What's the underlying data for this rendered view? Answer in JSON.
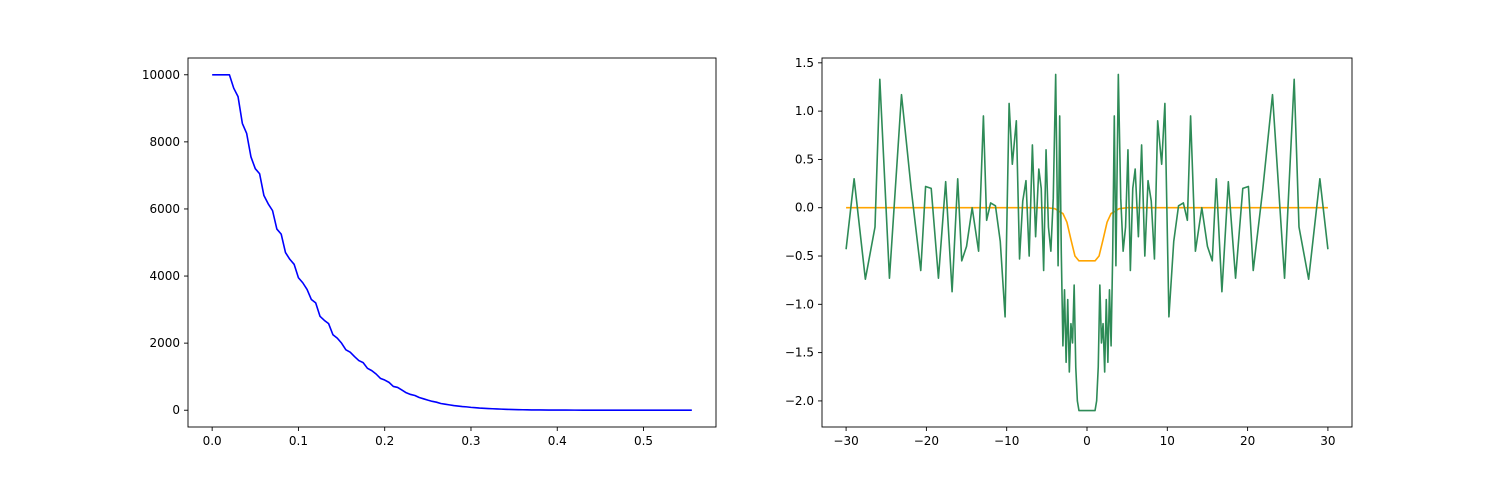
{
  "chart_data": [
    {
      "type": "line",
      "title": "",
      "xlabel": "",
      "ylabel": "",
      "xlim": [
        -0.028,
        0.584
      ],
      "ylim": [
        -500,
        10500
      ],
      "grid": false,
      "xticks": [
        0.0,
        0.1,
        0.2,
        0.3,
        0.4,
        0.5
      ],
      "xtick_labels": [
        "0.0",
        "0.1",
        "0.2",
        "0.3",
        "0.4",
        "0.5"
      ],
      "yticks": [
        0,
        2000,
        4000,
        6000,
        8000,
        10000
      ],
      "ytick_labels": [
        "0",
        "2000",
        "4000",
        "6000",
        "8000",
        "10000"
      ],
      "series": [
        {
          "color": "#0000ff",
          "x": [
            0.0,
            0.02,
            0.025,
            0.03,
            0.035,
            0.04,
            0.045,
            0.05,
            0.055,
            0.06,
            0.065,
            0.07,
            0.075,
            0.08,
            0.085,
            0.09,
            0.095,
            0.1,
            0.105,
            0.11,
            0.115,
            0.12,
            0.125,
            0.13,
            0.135,
            0.14,
            0.145,
            0.15,
            0.155,
            0.16,
            0.165,
            0.17,
            0.175,
            0.18,
            0.185,
            0.19,
            0.195,
            0.2,
            0.205,
            0.21,
            0.215,
            0.22,
            0.225,
            0.23,
            0.235,
            0.24,
            0.245,
            0.25,
            0.255,
            0.26,
            0.265,
            0.27,
            0.275,
            0.28,
            0.285,
            0.29,
            0.295,
            0.3,
            0.305,
            0.31,
            0.315,
            0.32,
            0.325,
            0.33,
            0.335,
            0.34,
            0.345,
            0.35,
            0.355,
            0.36,
            0.365,
            0.37,
            0.38,
            0.39,
            0.4,
            0.41,
            0.42,
            0.43,
            0.44,
            0.45,
            0.47,
            0.49,
            0.51,
            0.53,
            0.556
          ],
          "y": [
            10000,
            10000,
            9600,
            9350,
            8550,
            8250,
            7550,
            7200,
            7050,
            6400,
            6150,
            5950,
            5400,
            5250,
            4700,
            4500,
            4350,
            3950,
            3800,
            3600,
            3300,
            3200,
            2800,
            2680,
            2580,
            2250,
            2150,
            2000,
            1800,
            1730,
            1600,
            1480,
            1420,
            1250,
            1180,
            1080,
            950,
            900,
            830,
            710,
            680,
            600,
            520,
            470,
            440,
            380,
            340,
            300,
            265,
            240,
            200,
            180,
            160,
            140,
            125,
            110,
            100,
            85,
            75,
            65,
            58,
            50,
            44,
            38,
            33,
            28,
            24,
            20,
            17,
            14,
            12,
            10,
            8,
            6,
            5,
            4,
            3,
            2,
            2,
            1,
            1,
            0,
            0,
            0,
            0
          ]
        }
      ]
    },
    {
      "type": "line",
      "title": "",
      "xlabel": "",
      "ylabel": "",
      "xlim": [
        -33,
        33
      ],
      "ylim": [
        -2.27,
        1.55
      ],
      "grid": false,
      "xticks": [
        -30,
        -20,
        -10,
        0,
        10,
        20,
        30
      ],
      "xtick_labels": [
        "−30",
        "−20",
        "−10",
        "0",
        "10",
        "20",
        "30"
      ],
      "yticks": [
        -2.0,
        -1.5,
        -1.0,
        -0.5,
        0.0,
        0.5,
        1.0,
        1.5
      ],
      "ytick_labels": [
        "−2.0",
        "−1.5",
        "−1.0",
        "−0.5",
        "0.0",
        "0.5",
        "1.0",
        "1.5"
      ],
      "series": [
        {
          "color": "#ffa500",
          "x": [
            -30,
            -6,
            -5,
            -4,
            -3,
            -2.5,
            -2,
            -1.5,
            -1,
            0,
            1,
            1.5,
            2,
            2.5,
            3,
            4,
            5,
            6,
            30
          ],
          "y": [
            0,
            0,
            0,
            -0.01,
            -0.06,
            -0.15,
            -0.33,
            -0.5,
            -0.55,
            -0.55,
            -0.55,
            -0.5,
            -0.33,
            -0.15,
            -0.06,
            -0.01,
            0,
            0,
            0
          ],
          "name": ""
        },
        {
          "color": "#2e8b57",
          "x": [
            -30,
            -29,
            -27.6,
            -26.4,
            -25.8,
            -24.6,
            -23.1,
            -21.9,
            -20.7,
            -20.1,
            -19.4,
            -18.5,
            -17.6,
            -16.8,
            -16.1,
            -15.6,
            -15.0,
            -14.3,
            -13.5,
            -12.9,
            -12.5,
            -12.0,
            -11.4,
            -10.8,
            -10.2,
            -9.7,
            -9.3,
            -8.8,
            -8.4,
            -8.0,
            -7.6,
            -7.2,
            -6.8,
            -6.4,
            -6.0,
            -5.7,
            -5.4,
            -5.1,
            -4.8,
            -4.5,
            -4.2,
            -3.9,
            -3.6,
            -3.4,
            -3.2,
            -3.0,
            -2.8,
            -2.6,
            -2.4,
            -2.2,
            -2.0,
            -1.8,
            -1.6,
            -1.4,
            -1.2,
            -1.0,
            1.0,
            1.2,
            1.4,
            1.6,
            1.8,
            2.0,
            2.2,
            2.4,
            2.6,
            2.8,
            3.0,
            3.2,
            3.4,
            3.6,
            3.9,
            4.2,
            4.5,
            4.8,
            5.1,
            5.4,
            5.7,
            6.0,
            6.4,
            6.8,
            7.2,
            7.6,
            8.0,
            8.4,
            8.8,
            9.3,
            9.7,
            10.2,
            10.8,
            11.4,
            12.0,
            12.5,
            12.9,
            13.5,
            14.3,
            15.0,
            15.6,
            16.1,
            16.8,
            17.6,
            18.5,
            19.4,
            20.1,
            20.7,
            21.9,
            23.1,
            24.6,
            25.8,
            26.4,
            27.6,
            29,
            30
          ],
          "y": [
            -0.43,
            0.3,
            -0.74,
            -0.2,
            1.33,
            -0.73,
            1.17,
            0.2,
            -0.65,
            0.22,
            0.2,
            -0.73,
            0.27,
            -0.87,
            0.3,
            -0.55,
            -0.4,
            0.0,
            -0.45,
            0.95,
            -0.13,
            0.05,
            0.02,
            -0.35,
            -1.13,
            1.08,
            0.45,
            0.9,
            -0.53,
            0.07,
            0.28,
            -0.5,
            0.65,
            -0.3,
            0.4,
            0.2,
            -0.65,
            0.6,
            -0.2,
            -0.45,
            0.1,
            1.38,
            -0.6,
            0.95,
            -0.47,
            -1.43,
            -0.85,
            -1.6,
            -0.95,
            -1.7,
            -1.2,
            -1.4,
            -0.8,
            -1.65,
            -2.0,
            -2.1,
            -2.1,
            -2.0,
            -1.65,
            -0.8,
            -1.4,
            -1.2,
            -1.7,
            -0.95,
            -1.6,
            -0.85,
            -1.43,
            -0.47,
            0.95,
            -0.6,
            1.38,
            0.1,
            -0.45,
            -0.2,
            0.6,
            -0.65,
            0.2,
            0.4,
            -0.3,
            0.65,
            -0.5,
            0.28,
            0.07,
            -0.53,
            0.9,
            0.45,
            1.08,
            -1.13,
            -0.35,
            0.02,
            0.05,
            -0.13,
            0.95,
            -0.45,
            0.0,
            -0.4,
            -0.55,
            0.3,
            -0.87,
            0.27,
            -0.73,
            0.2,
            0.22,
            -0.65,
            0.2,
            1.17,
            -0.73,
            1.33,
            -0.2,
            -0.74,
            0.3,
            -0.43
          ],
          "name": ""
        }
      ]
    }
  ]
}
